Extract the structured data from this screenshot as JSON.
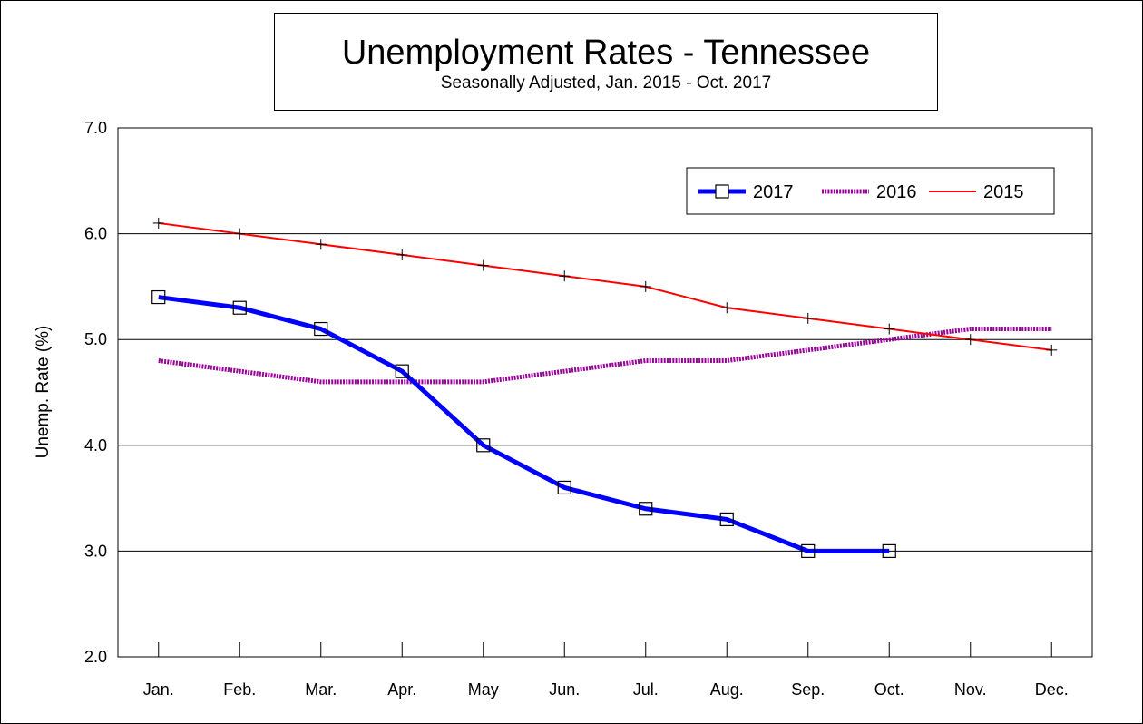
{
  "chart_data": {
    "type": "line",
    "title": "Unemployment Rates - Tennessee",
    "subtitle": "Seasonally Adjusted, Jan. 2015 - Oct. 2017",
    "xlabel": "",
    "ylabel": "Unemp. Rate (%)",
    "ylim": [
      2.0,
      7.0
    ],
    "yticks": [
      "2.0",
      "3.0",
      "4.0",
      "5.0",
      "6.0",
      "7.0"
    ],
    "categories": [
      "Jan.",
      "Feb.",
      "Mar.",
      "Apr.",
      "May",
      "Jun.",
      "Jul.",
      "Aug.",
      "Sep.",
      "Oct.",
      "Nov.",
      "Dec."
    ],
    "grid": "horizontal",
    "legend_position": "top-right",
    "series": [
      {
        "name": "2017",
        "color": "#0000ff",
        "marker": "square",
        "style": "solid-thick",
        "values": [
          5.4,
          5.3,
          5.1,
          4.7,
          4.0,
          3.6,
          3.4,
          3.3,
          3.0,
          3.0,
          null,
          null
        ]
      },
      {
        "name": "2016",
        "color": "#990099",
        "marker": "none",
        "style": "dotted-thick",
        "values": [
          4.8,
          4.7,
          4.6,
          4.6,
          4.6,
          4.7,
          4.8,
          4.8,
          4.9,
          5.0,
          5.1,
          5.1
        ]
      },
      {
        "name": "2015",
        "color": "#ff0000",
        "marker": "plus",
        "style": "solid-thin",
        "values": [
          6.1,
          6.0,
          5.9,
          5.8,
          5.7,
          5.6,
          5.5,
          5.3,
          5.2,
          5.1,
          5.0,
          4.9
        ]
      }
    ]
  }
}
